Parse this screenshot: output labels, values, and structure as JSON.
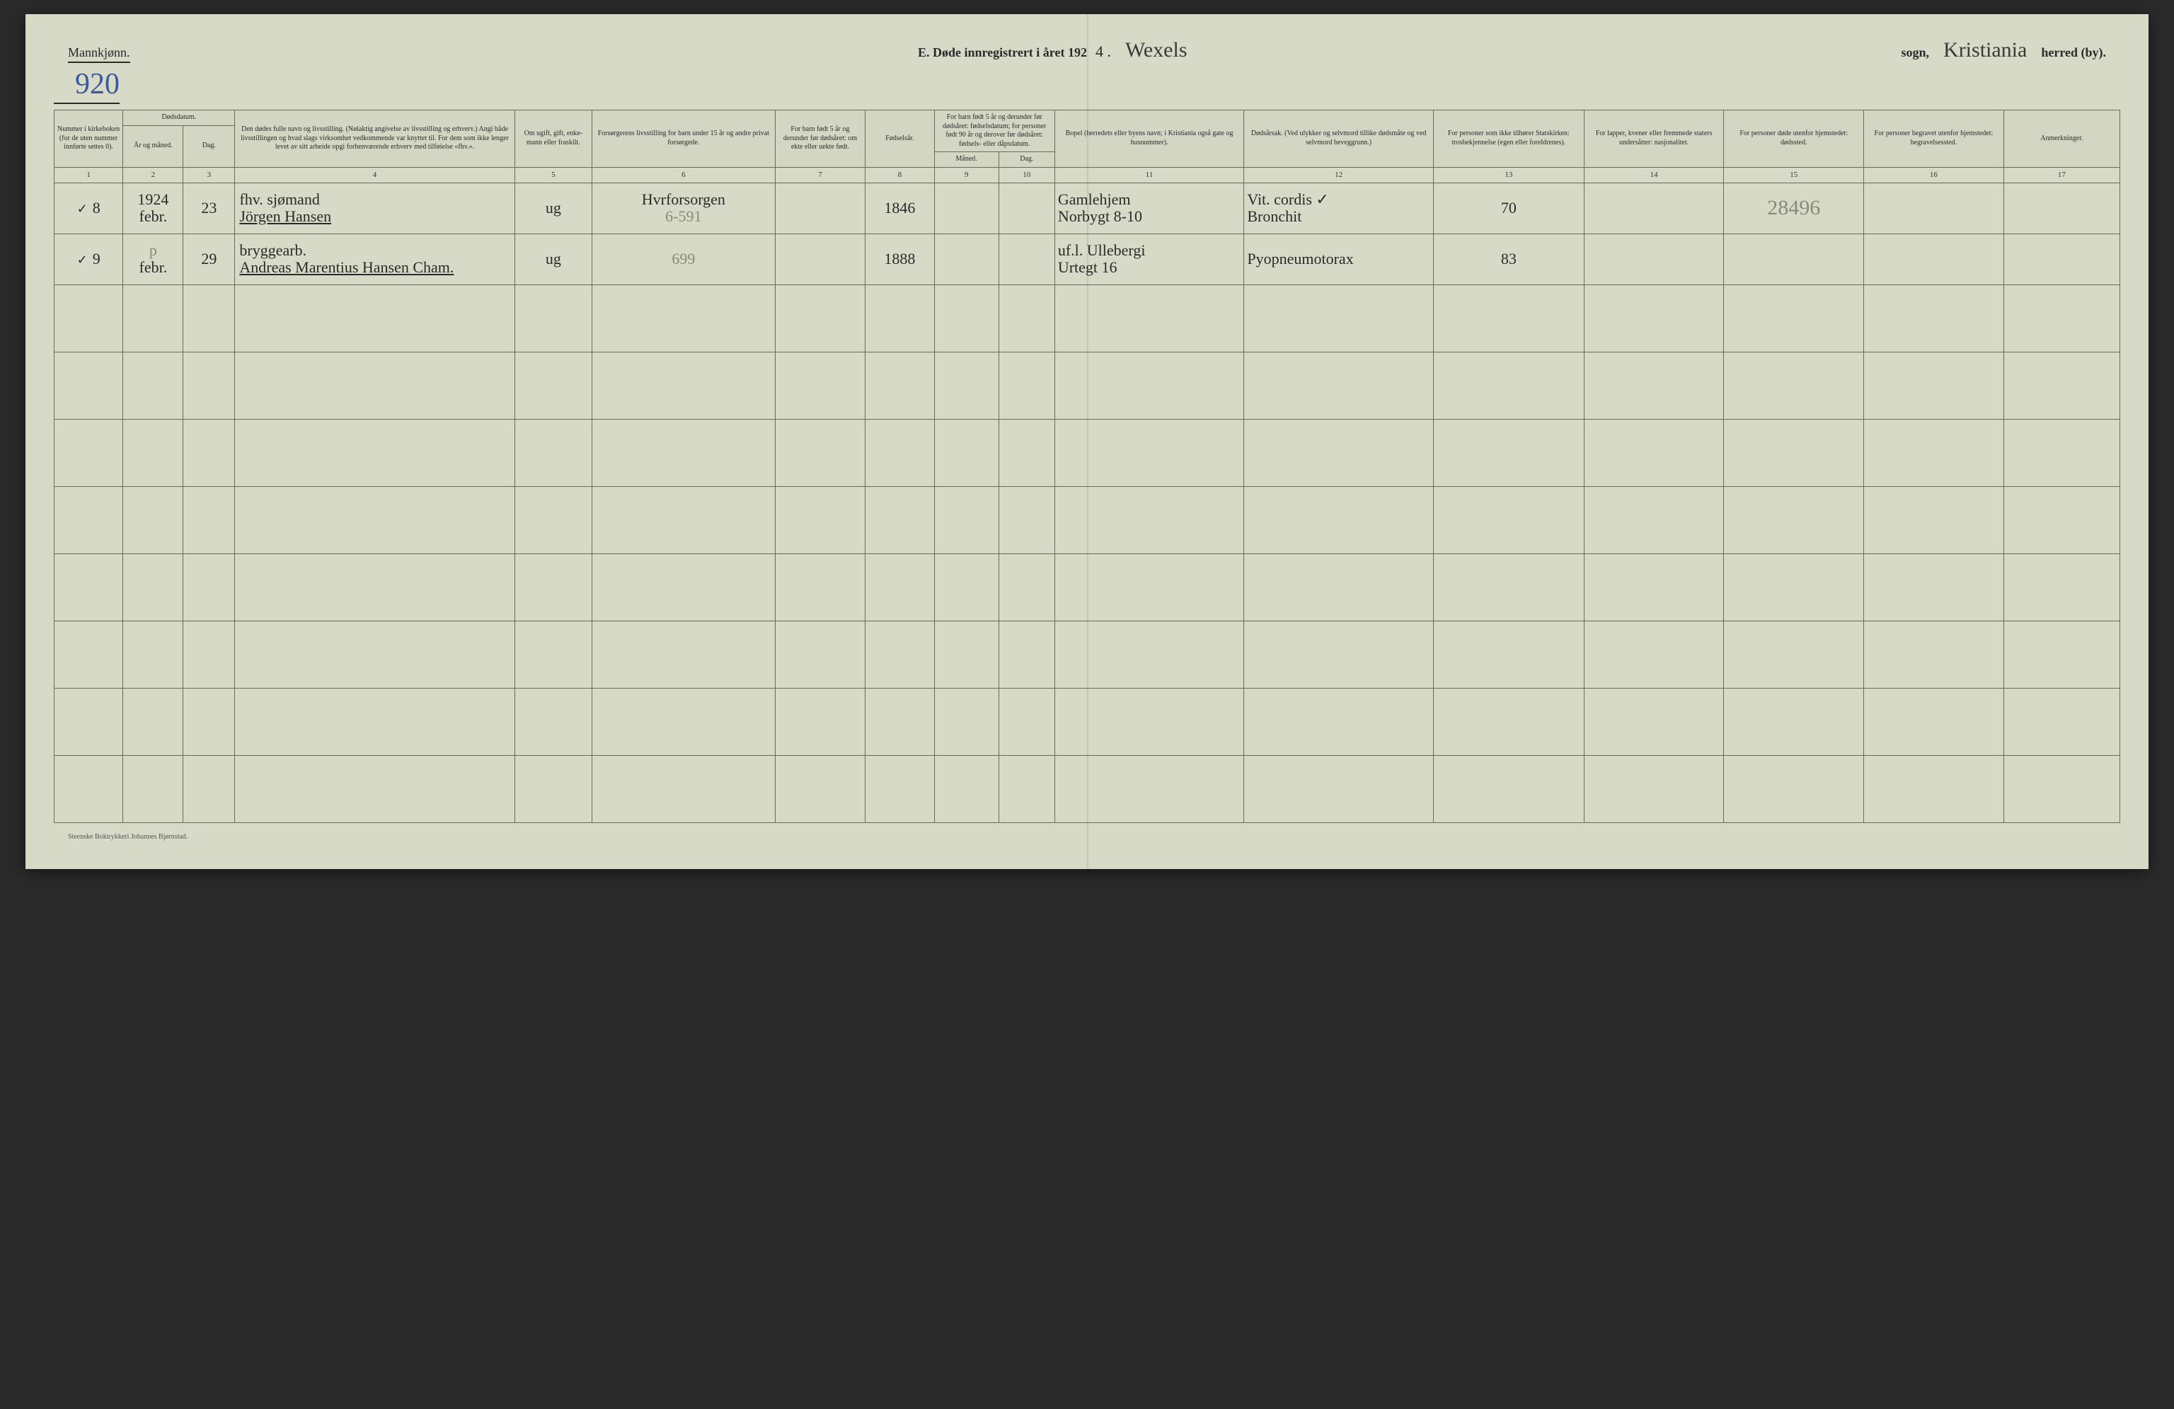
{
  "header": {
    "gender_label": "Mannkjønn.",
    "page_number": "920",
    "title_prefix": "E.  Døde innregistrert i året 192",
    "year_suffix": "4 .",
    "parish_value": "Wexels",
    "parish_label": "sogn,",
    "district_value": "Kristiania",
    "district_label": "herred (by)."
  },
  "columns": {
    "c1": "Nummer i kirke­boken (for de uten nummer innførte settes 0).",
    "c2_group": "Dødsdatum.",
    "c2": "År og måned.",
    "c3": "Dag.",
    "c4": "Den dødes fulle navn og livsstilling. (Nøiaktig angivelse av livsstilling og erhverv.) Angi både livsstillingen og hvad slags virksomhet vedkommende var knyttet til. For dem som ikke lenger levet av sitt arbeide opgi forhenværende erhverv med tilføielse «fhv.».",
    "c5": "Om ugift, gift, enke­mann eller fraskilt.",
    "c6": "Forsørgerens livsstilling for barn under 15 år og andre privat forsørgede.",
    "c7": "For barn født 5 år og derunder før døds­året: om ekte eller uekte født.",
    "c8": "Fødsels­år.",
    "c9_10_group": "For barn født 5 år og der­under før dødsåret: fødselsdatum; for personer født 90 år og derover før dødsåret: fødsels- eller dåpsdatum.",
    "c9": "Måned.",
    "c10": "Dag.",
    "c11": "Bopel (herredets eller byens navn; i Kristiania også gate og husnummer).",
    "c12": "Dødsårsak. (Ved ulykker og selv­mord tillike dødsmåte og ved selvmord beveggrunn.)",
    "c13": "For personer som ikke tilhører Statskirken: trosbekjennelse (egen eller foreldrenes).",
    "c14": "For lapper, kvener eller fremmede staters undersåtter: nasjonalitet.",
    "c15": "For personer døde utenfor hjemstedet: dødssted.",
    "c16": "For personer begravet utenfor hjemstedet: begravelsessted.",
    "c17": "Anmerkninger."
  },
  "colnums": [
    "1",
    "2",
    "3",
    "4",
    "5",
    "6",
    "7",
    "8",
    "9",
    "10",
    "11",
    "12",
    "13",
    "14",
    "15",
    "16",
    "17"
  ],
  "rows": [
    {
      "tick": "✓",
      "num": "8",
      "year_month_top": "1924",
      "year_month": "febr.",
      "day": "23",
      "name_top": "fhv. sjømand",
      "name": "Jörgen Hansen",
      "marital": "ug",
      "provider_top": "Hvrforsorgen",
      "provider": "6-591",
      "born_legit": "",
      "birth_year": "1846",
      "bm": "",
      "bd": "",
      "residence_top": "Gamlehjem",
      "residence": "Norbygt 8-10",
      "cause_top": "Vit. cordis ✓",
      "cause": "Bronchit",
      "faith": "70",
      "nationality": "",
      "death_place": "28496",
      "burial_place": "",
      "remarks": ""
    },
    {
      "tick": "✓",
      "num": "9",
      "year_month_top": "p",
      "year_month": "febr.",
      "day": "29",
      "name_top": "bryggearb.",
      "name": "Andreas Marentius Hansen Cham.",
      "marital": "ug",
      "provider_top": "",
      "provider": "699",
      "born_legit": "",
      "birth_year": "1888",
      "bm": "",
      "bd": "",
      "residence_top": "uf.l.  Ullebergi",
      "residence": "Urtegt 16",
      "cause_top": "Pyopneumotorax",
      "cause": "",
      "faith": "83",
      "nationality": "",
      "death_place": "",
      "burial_place": "",
      "remarks": ""
    }
  ],
  "empty_row_count": 8,
  "footer": "Steenske Boktrykkeri Johannes Bjørnstad."
}
